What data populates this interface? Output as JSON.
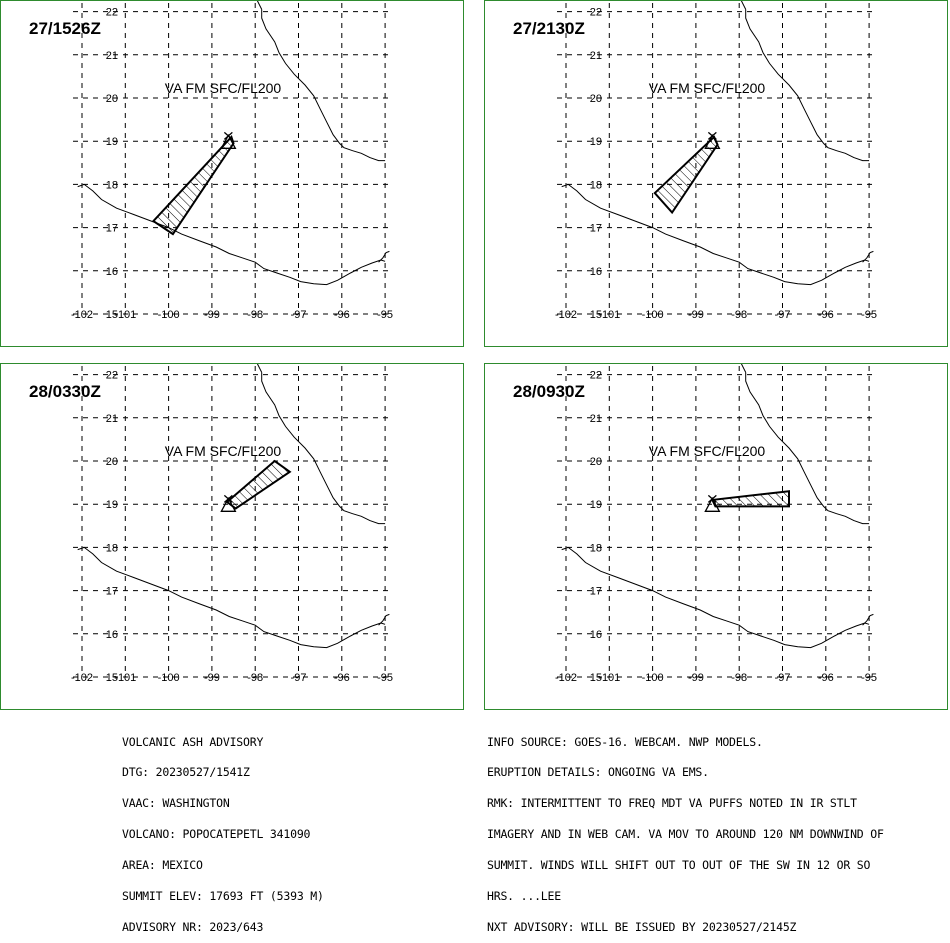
{
  "advisory": {
    "left_lines": [
      "VOLCANIC ASH ADVISORY",
      "DTG: 20230527/1541Z",
      "VAAC: WASHINGTON",
      "VOLCANO: POPOCATEPETL 341090",
      "AREA: MEXICO",
      "SUMMIT ELEV: 17693 FT (5393 M)",
      "ADVISORY NR: 2023/643"
    ],
    "right_lines": [
      "INFO SOURCE: GOES-16. WEBCAM. NWP MODELS.",
      "ERUPTION DETAILS: ONGOING VA EMS.",
      "RMK: INTERMITTENT TO FREQ MDT VA PUFFS NOTED IN IR STLT",
      "IMAGERY AND IN WEB CAM. VA MOV TO AROUND 120 NM DOWNWIND OF",
      "SUMMIT. WINDS WILL SHIFT OUT TO OUT OF THE SW IN 12 OR SO",
      "HRS. ...LEE",
      "NXT ADVISORY: WILL BE ISSUED BY 20230527/2145Z"
    ]
  },
  "map": {
    "lon_ticks": [
      "-102",
      "-101",
      "-100",
      "-99",
      "-98",
      "-97",
      "-96",
      "-95"
    ],
    "lat_ticks": [
      "15",
      "16",
      "17",
      "18",
      "19",
      "20",
      "21",
      "22"
    ],
    "volcano": {
      "lon": -98.62,
      "lat": 19.02
    },
    "colors": {
      "border": "#2e8b2e",
      "line": "#000000"
    }
  },
  "panels": [
    {
      "time": "27/1526Z",
      "level_label": "VA FM SFC/FL200",
      "ash_polygon": [
        [
          -98.55,
          19.1
        ],
        [
          -98.5,
          18.95
        ],
        [
          -99.9,
          16.85
        ],
        [
          -100.35,
          17.15
        ]
      ]
    },
    {
      "time": "27/2130Z",
      "level_label": "VA FM SFC/FL200",
      "ash_polygon": [
        [
          -98.58,
          19.1
        ],
        [
          -98.5,
          18.92
        ],
        [
          -99.55,
          17.35
        ],
        [
          -99.95,
          17.8
        ]
      ]
    },
    {
      "time": "28/0330Z",
      "level_label": "VA FM SFC/FL200",
      "ash_polygon": [
        [
          -98.65,
          19.05
        ],
        [
          -98.45,
          18.9
        ],
        [
          -97.2,
          19.75
        ],
        [
          -97.55,
          20.0
        ]
      ]
    },
    {
      "time": "28/0930Z",
      "level_label": "VA FM SFC/FL200",
      "ash_polygon": [
        [
          -98.62,
          19.1
        ],
        [
          -98.55,
          18.95
        ],
        [
          -96.85,
          18.95
        ],
        [
          -96.85,
          19.3
        ]
      ]
    }
  ]
}
